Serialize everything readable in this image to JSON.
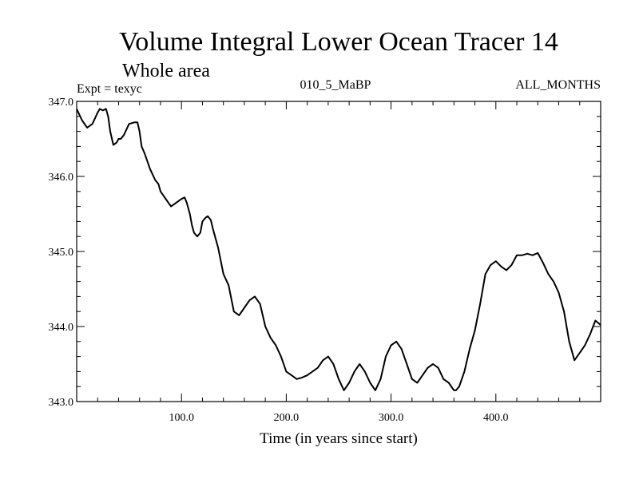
{
  "chart_data": {
    "type": "line",
    "title": "Volume Integral Lower Ocean Tracer 14",
    "subtitle": "Whole area",
    "experiment": "Expt = texyc",
    "center_label": "010_5_MaBP",
    "right_label": "ALL_MONTHS",
    "xlabel": "Time (in years since start)",
    "ylabel": "",
    "xlim": [
      0,
      500
    ],
    "ylim": [
      343.0,
      347.0
    ],
    "x_ticks_labeled": [
      "100.0",
      "200.0",
      "300.0",
      "400.0"
    ],
    "y_ticks_labeled": [
      "343.0",
      "344.0",
      "345.0",
      "346.0",
      "347.0"
    ],
    "series": [
      {
        "x": [
          0,
          5,
          10,
          15,
          20,
          22,
          25,
          28,
          30,
          32,
          35,
          38,
          40,
          42,
          45,
          50,
          55,
          58,
          60,
          62,
          65,
          70,
          75,
          78,
          80,
          85,
          90,
          95,
          100,
          103,
          105,
          108,
          110,
          112,
          115,
          118,
          120,
          123,
          125,
          128,
          130,
          135,
          140,
          145,
          150,
          155,
          160,
          165,
          170,
          175,
          180,
          185,
          190,
          195,
          200,
          205,
          210,
          215,
          220,
          225,
          230,
          235,
          240,
          245,
          250,
          255,
          260,
          265,
          270,
          275,
          280,
          285,
          290,
          295,
          300,
          305,
          310,
          315,
          320,
          325,
          330,
          335,
          340,
          345,
          350,
          355,
          360,
          362,
          365,
          370,
          375,
          380,
          385,
          390,
          395,
          400,
          405,
          410,
          415,
          420,
          425,
          430,
          435,
          440,
          445,
          450,
          455,
          460,
          465,
          470,
          475,
          480,
          485,
          490,
          495,
          500
        ],
        "y": [
          346.9,
          346.75,
          346.65,
          346.7,
          346.85,
          346.9,
          346.88,
          346.9,
          346.8,
          346.6,
          346.42,
          346.45,
          346.5,
          346.5,
          346.55,
          346.7,
          346.72,
          346.72,
          346.6,
          346.4,
          346.3,
          346.1,
          345.95,
          345.9,
          345.8,
          345.7,
          345.6,
          345.65,
          345.7,
          345.72,
          345.65,
          345.5,
          345.35,
          345.25,
          345.2,
          345.25,
          345.4,
          345.45,
          345.47,
          345.42,
          345.3,
          345.05,
          344.7,
          344.55,
          344.2,
          344.15,
          344.25,
          344.35,
          344.4,
          344.3,
          344.0,
          343.85,
          343.75,
          343.6,
          343.4,
          343.35,
          343.3,
          343.32,
          343.35,
          343.4,
          343.45,
          343.55,
          343.6,
          343.5,
          343.3,
          343.15,
          343.25,
          343.4,
          343.5,
          343.4,
          343.25,
          343.15,
          343.3,
          343.6,
          343.75,
          343.8,
          343.7,
          343.5,
          343.3,
          343.25,
          343.35,
          343.45,
          343.5,
          343.45,
          343.3,
          343.25,
          343.15,
          343.15,
          343.2,
          343.4,
          343.7,
          343.95,
          344.3,
          344.7,
          344.82,
          344.87,
          344.8,
          344.75,
          344.82,
          344.95,
          344.95,
          344.97,
          344.95,
          344.98,
          344.85,
          344.7,
          344.6,
          344.45,
          344.2,
          343.8,
          343.55,
          343.65,
          343.75,
          343.9,
          344.08,
          344.02
        ]
      }
    ],
    "grid": false
  }
}
